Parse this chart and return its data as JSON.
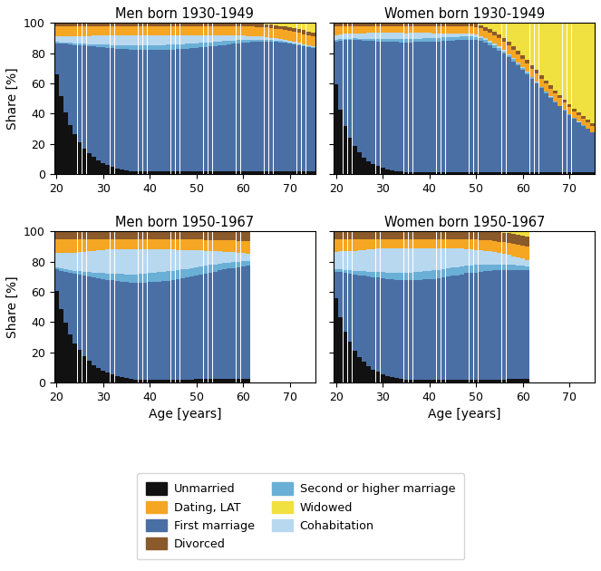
{
  "titles": [
    "Men born 1930-1949",
    "Women born 1930-1949",
    "Men born 1950-1967",
    "Women born 1950-1967"
  ],
  "colors": {
    "unmarried": "#111111",
    "first_marriage": "#4a6fa5",
    "second_marriage": "#6aafd6",
    "cohabitation": "#b8d8f0",
    "dating_lat": "#f5a623",
    "divorced": "#8b5a2b",
    "widowed": "#f0e040"
  },
  "legend_labels": [
    "Unmarried",
    "First marriage",
    "Second or higher marriage",
    "Cohabitation",
    "Dating, LAT",
    "Divorced",
    "Widowed"
  ],
  "xlabel": "Age [years]",
  "ylabel": "Share [%]",
  "ylim": [
    0,
    100
  ]
}
